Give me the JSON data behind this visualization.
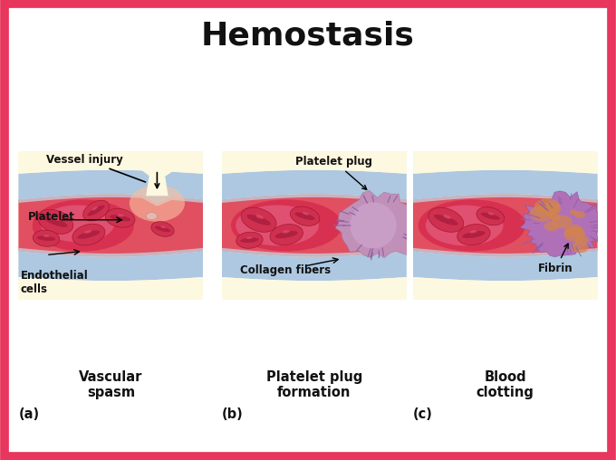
{
  "title": "Hemostasis",
  "title_fontsize": 26,
  "title_fontweight": "bold",
  "bg_color": "#ffffff",
  "border_color": "#e8365d",
  "border_lw": 7,
  "panel_bg": "#fdf8e0",
  "panel_labels": [
    "(a)",
    "(b)",
    "(c)"
  ],
  "step_titles": [
    "Vascular\nspasm",
    "Platelet plug\nformation",
    "Blood\nclotting"
  ],
  "vessel_wall_color": "#adc8e0",
  "vessel_wall_dark": "#7aafc8",
  "vessel_lumen_color": "#e05060",
  "vessel_lumen_light": "#f08090",
  "rbc_color": "#cc2840",
  "rbc_highlight": "#e85070",
  "rbc_shadow": "#a01830",
  "endothelial_color": "#c0dce8",
  "plug_color": "#c090b8",
  "plug_dark": "#9060a0",
  "fibrin_orange": "#d4844a",
  "fibrin_purple": "#b070b8",
  "wound_glow": "#f8c0a0",
  "text_color": "#111111",
  "label_fontsize": 8.5,
  "step_fontsize": 10.5
}
